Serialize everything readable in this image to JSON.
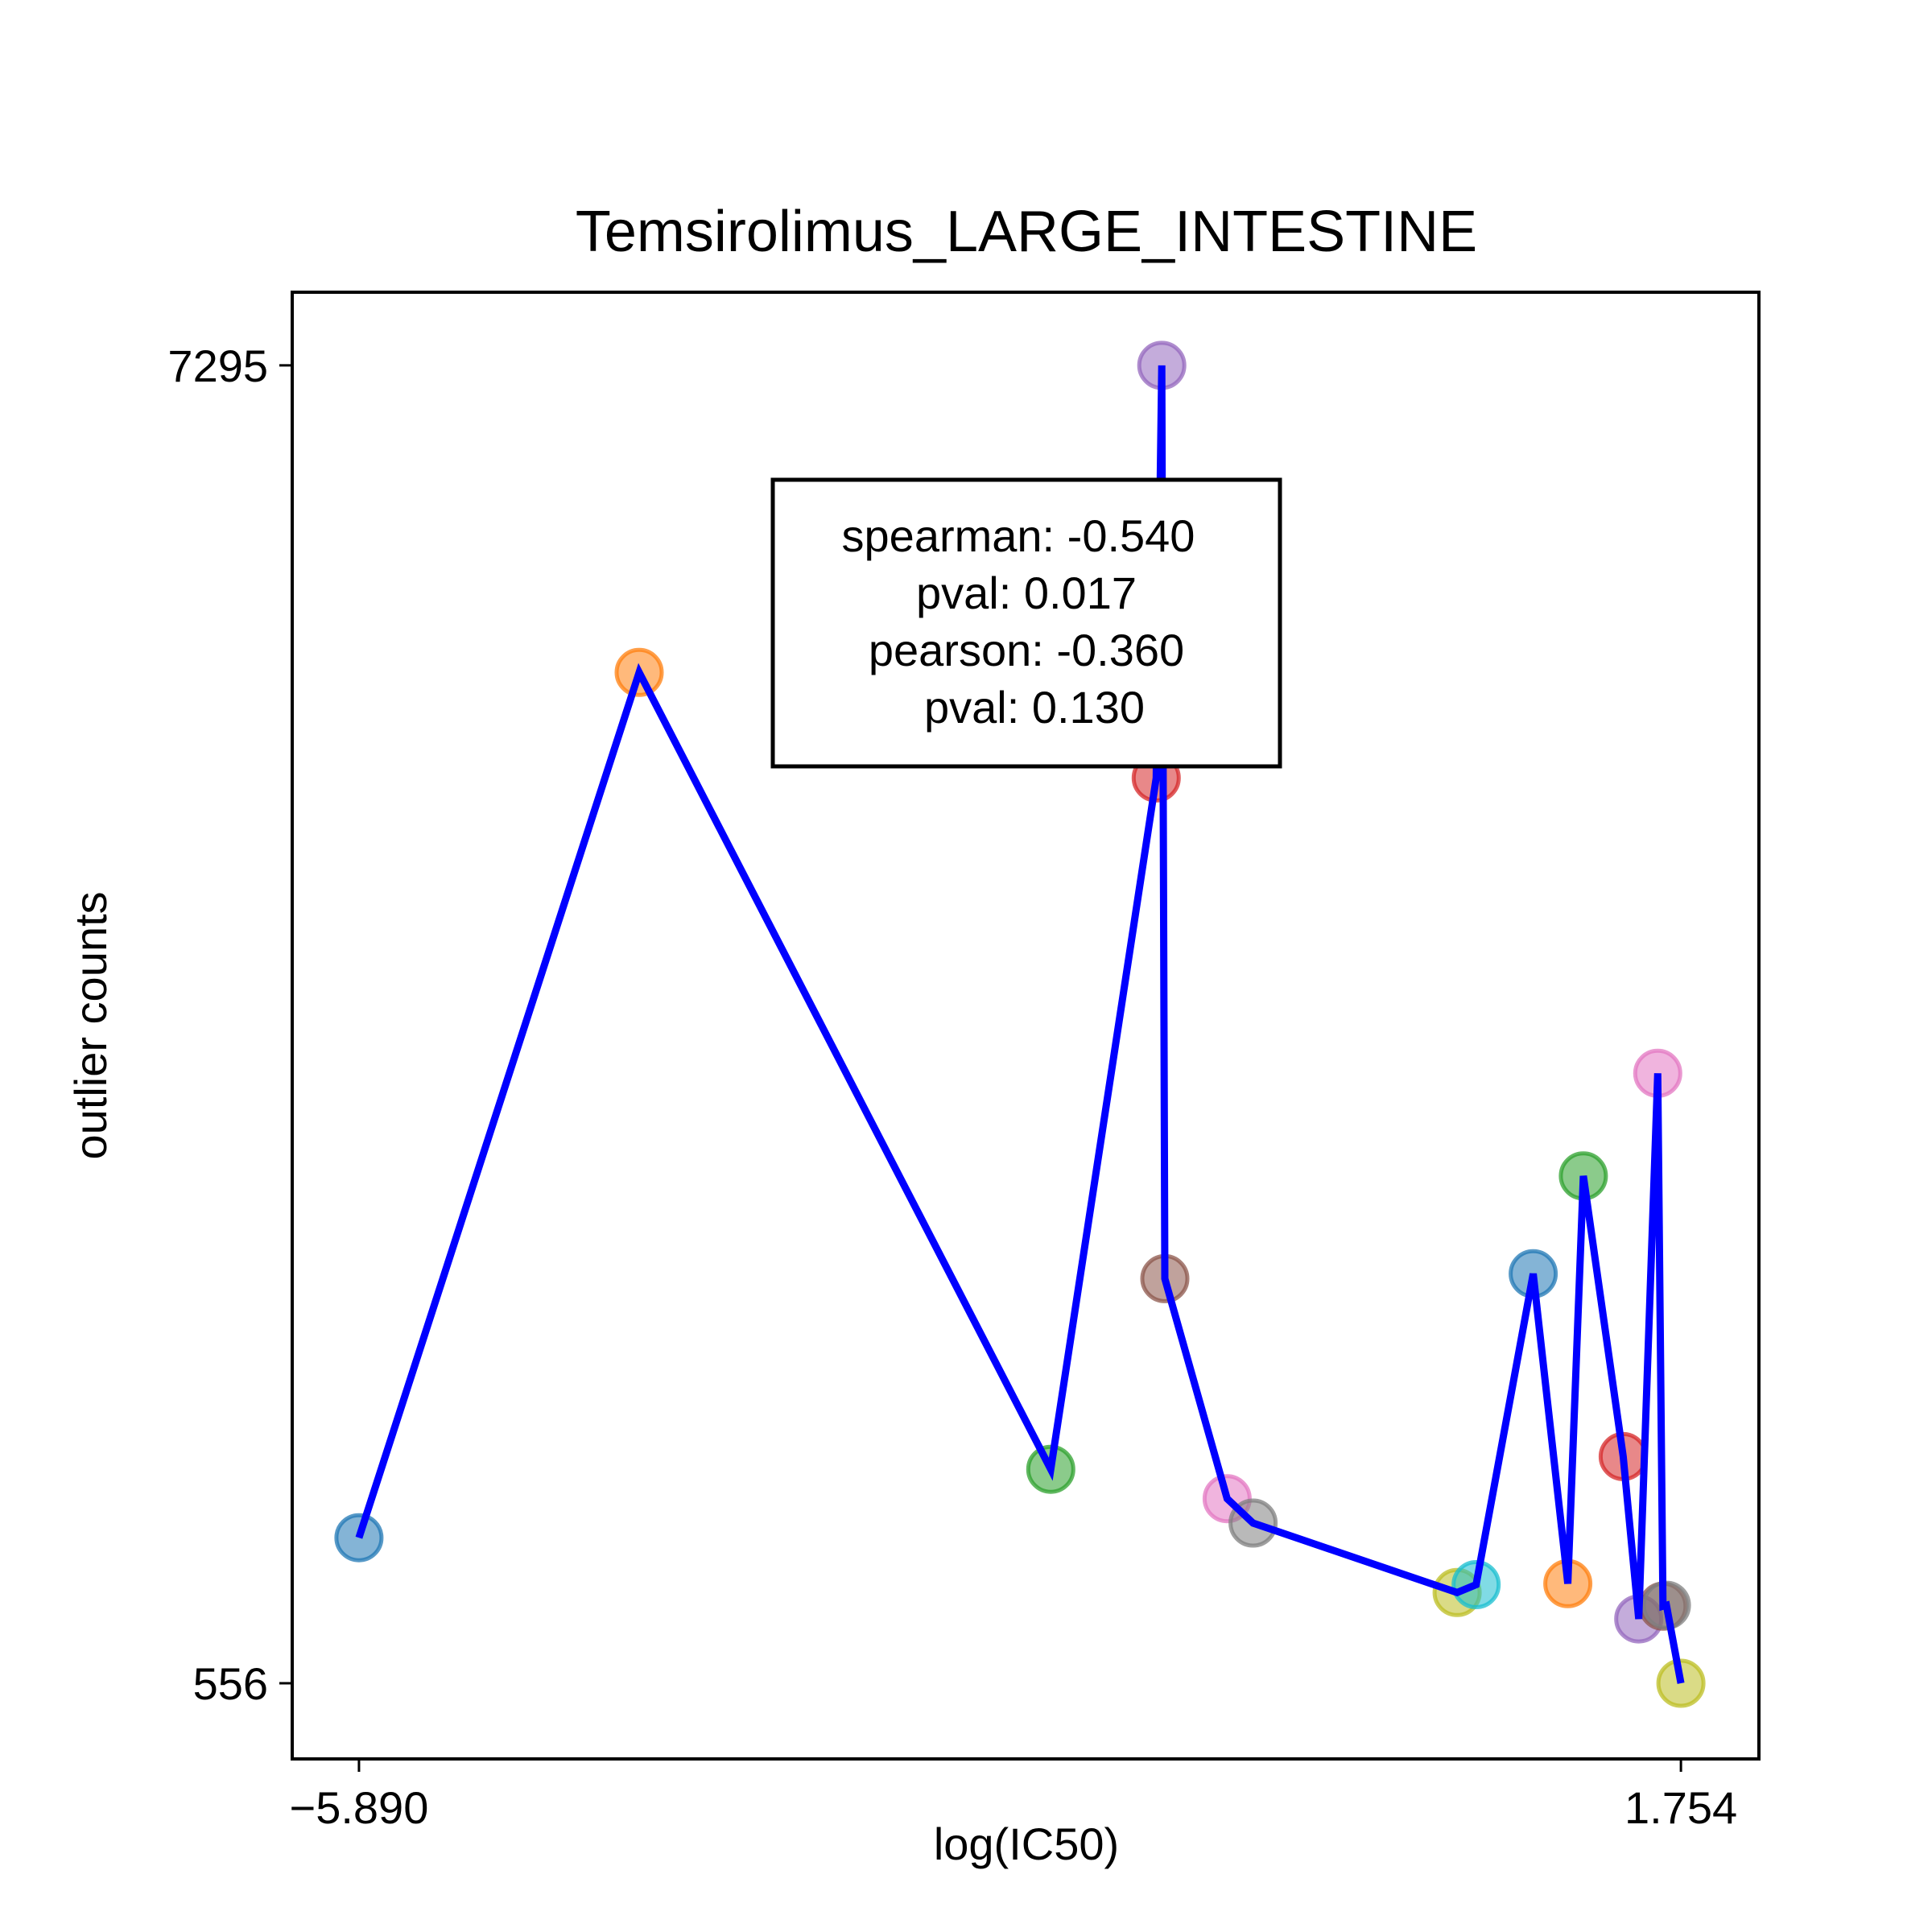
{
  "chart_data": {
    "type": "scatter",
    "title": "Temsirolimus_LARGE_INTESTINE",
    "xlabel": "log(IC50)",
    "ylabel": "outlier counts",
    "xticks": [
      -5.89,
      1.754
    ],
    "xtick_labels": [
      "−5.890",
      "1.754"
    ],
    "yticks": [
      556,
      7295
    ],
    "ytick_labels": [
      "556",
      "7295"
    ],
    "xlim": [
      -6.276,
      2.205
    ],
    "ylim": [
      169,
      7669
    ],
    "grid": false,
    "legend": "none",
    "points": [
      {
        "x": -5.89,
        "y": 1300,
        "color": "#1f77b4"
      },
      {
        "x": -4.27,
        "y": 5725,
        "color": "#ff7f0e"
      },
      {
        "x": -1.89,
        "y": 1650,
        "color": "#2ca02c"
      },
      {
        "x": -1.28,
        "y": 5185,
        "color": "#d62728"
      },
      {
        "x": -1.248,
        "y": 7295,
        "color": "#9467bd"
      },
      {
        "x": -1.23,
        "y": 2625,
        "color": "#8c564b"
      },
      {
        "x": -0.87,
        "y": 1500,
        "color": "#e377c2"
      },
      {
        "x": -0.72,
        "y": 1375,
        "color": "#7f7f7f"
      },
      {
        "x": 0.46,
        "y": 1020,
        "color": "#bcbd22"
      },
      {
        "x": 0.57,
        "y": 1060,
        "color": "#17becf"
      },
      {
        "x": 0.9,
        "y": 2650,
        "color": "#1f77b4"
      },
      {
        "x": 1.1,
        "y": 1065,
        "color": "#ff7f0e"
      },
      {
        "x": 1.19,
        "y": 3150,
        "color": "#2ca02c"
      },
      {
        "x": 1.42,
        "y": 1715,
        "color": "#d62728"
      },
      {
        "x": 1.51,
        "y": 885,
        "color": "#9467bd"
      },
      {
        "x": 1.62,
        "y": 3675,
        "color": "#e377c2"
      },
      {
        "x": 1.65,
        "y": 950,
        "color": "#8c564b"
      },
      {
        "x": 1.67,
        "y": 955,
        "color": "#7f7f7f"
      },
      {
        "x": 1.754,
        "y": 556,
        "color": "#bcbd22"
      }
    ],
    "line_color": "#0000ff",
    "annotation": {
      "lines": [
        "spearman: -0.540",
        "pval: 0.017",
        "pearson: -0.360",
        "pval: 0.130"
      ]
    }
  }
}
